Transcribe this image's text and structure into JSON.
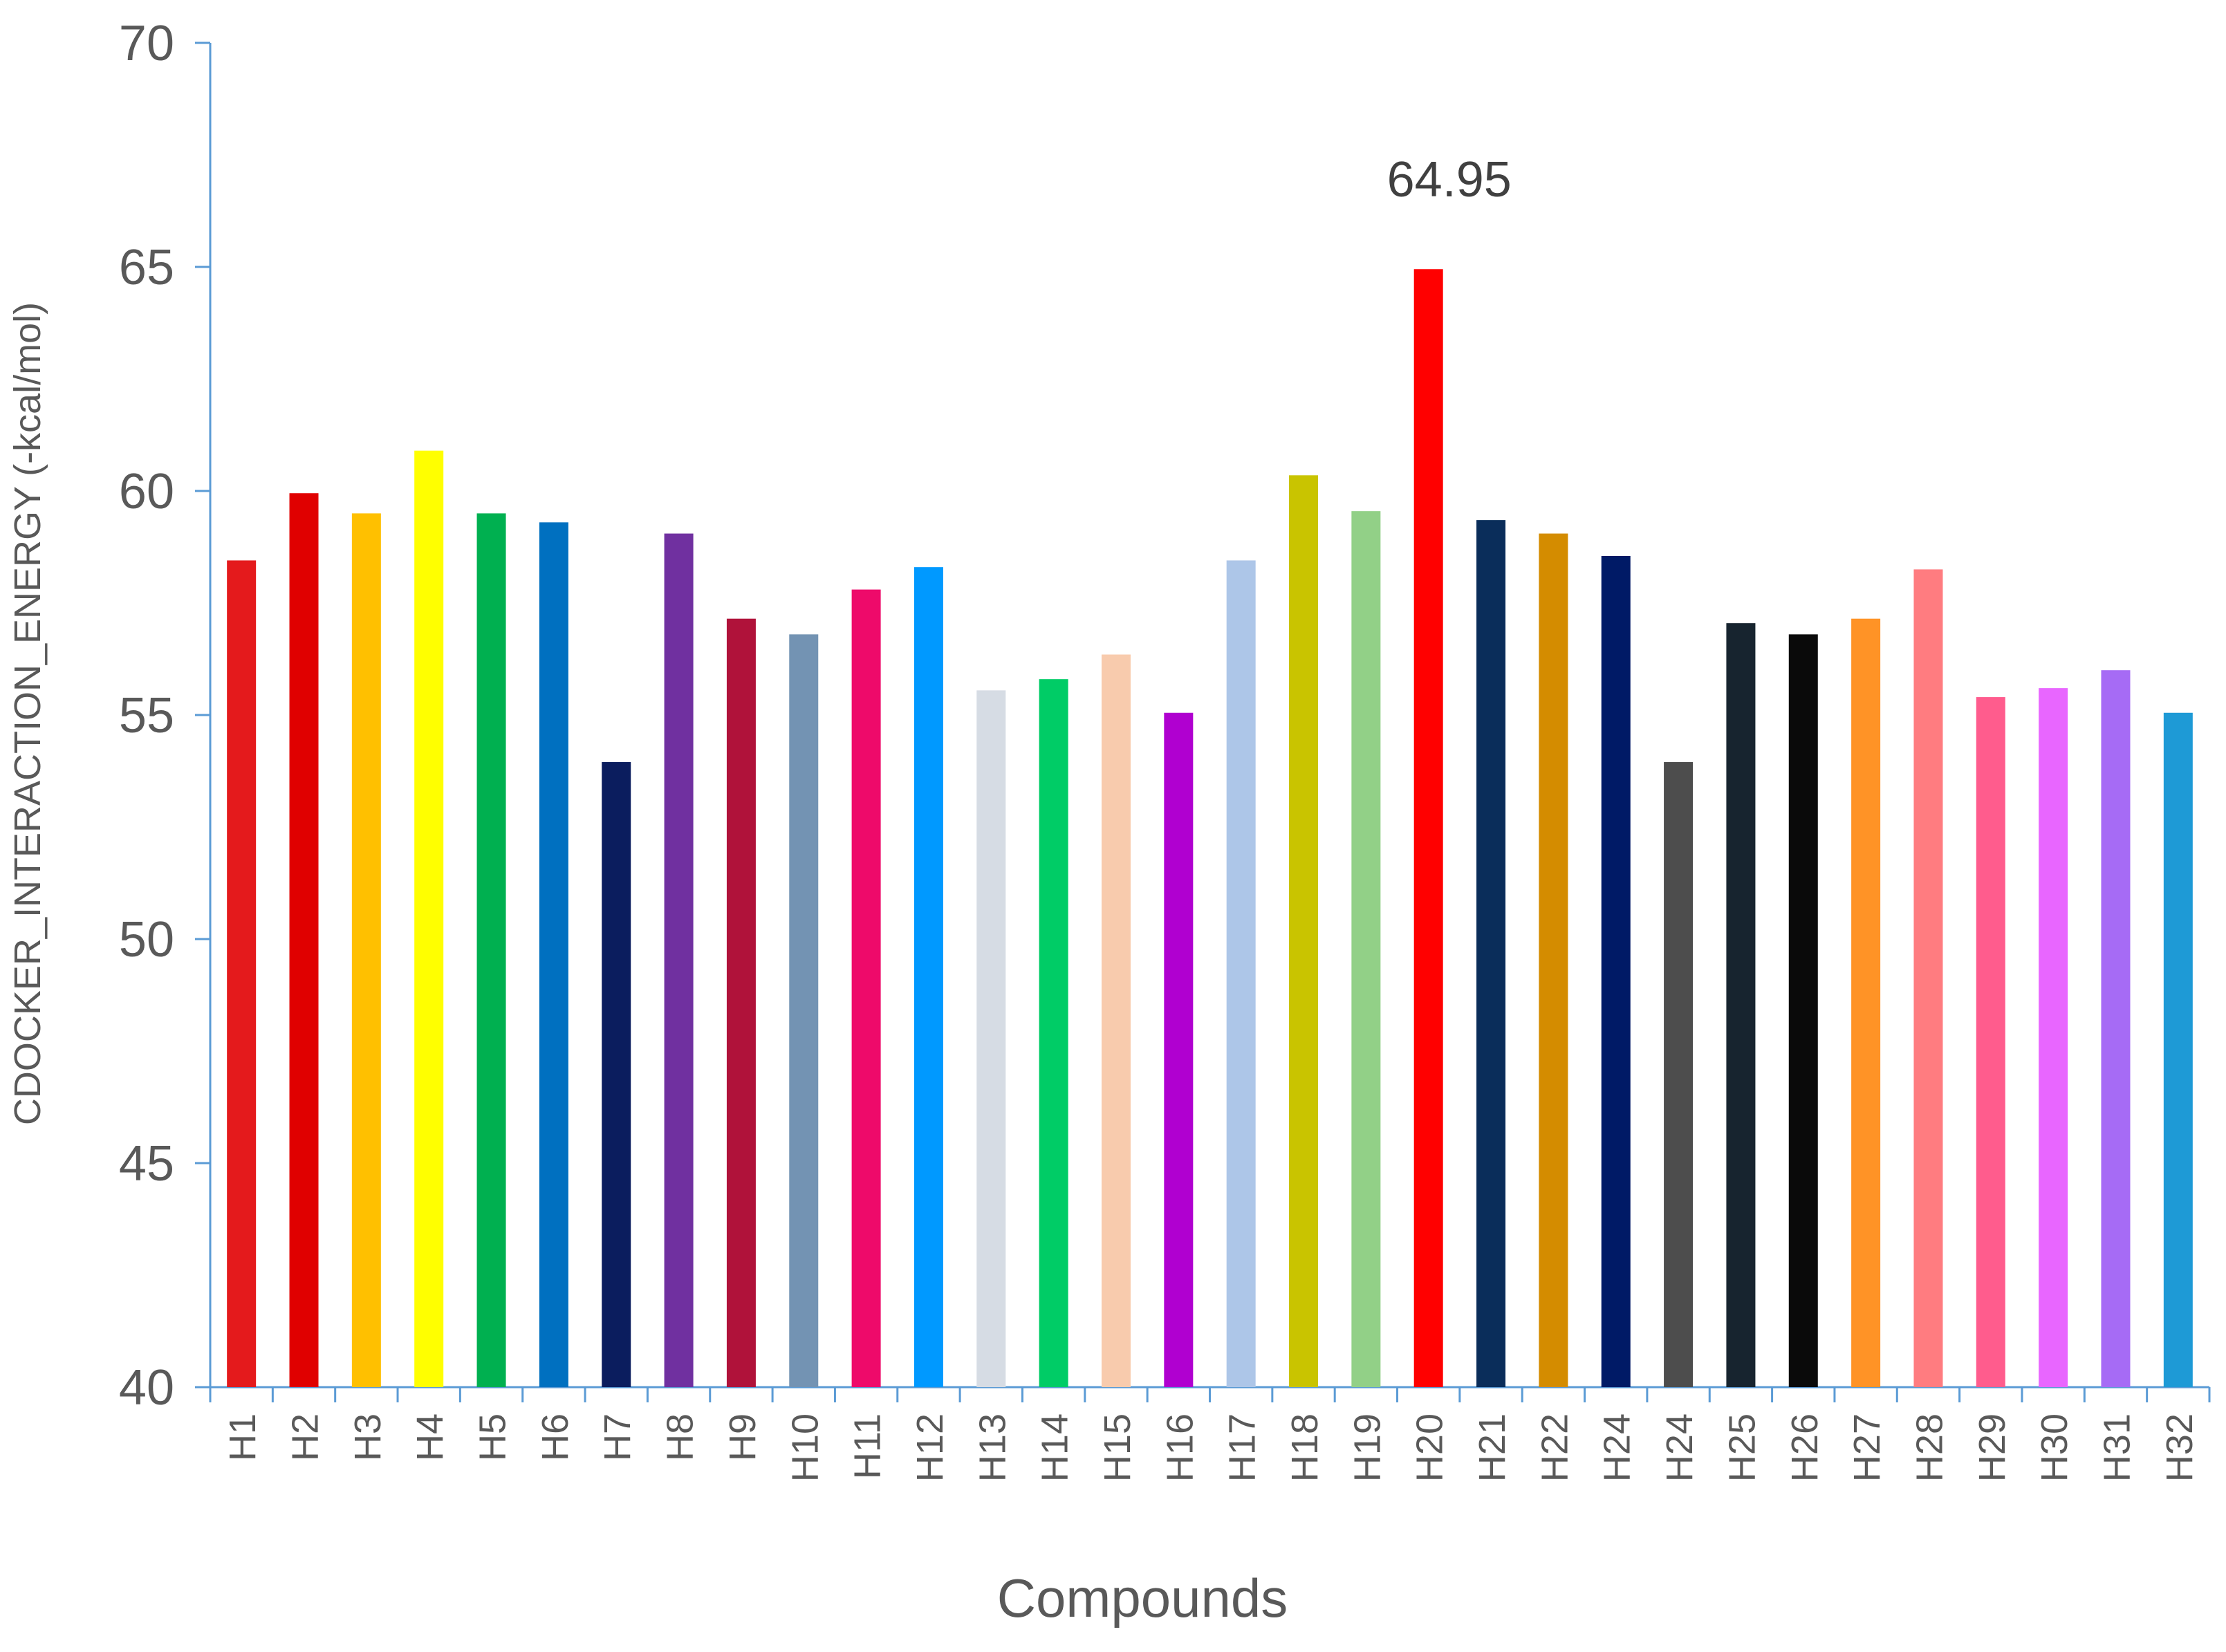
{
  "chart_data": {
    "type": "bar",
    "title": "",
    "xlabel": "Compounds",
    "ylabel": "CDOCKER_INTERACTION_ENERGY (-kcal/mol)",
    "ylim": [
      40,
      70
    ],
    "yticks": [
      40,
      45,
      50,
      55,
      60,
      65,
      70
    ],
    "grid": false,
    "legend": "none",
    "categories": [
      "H1",
      "H2",
      "H3",
      "H4",
      "H5",
      "H6",
      "H7",
      "H8",
      "H9",
      "H10",
      "H11",
      "H12",
      "H13",
      "H14",
      "H15",
      "H16",
      "H17",
      "H18",
      "H19",
      "H20",
      "H21",
      "H22",
      "H24",
      "H24",
      "H25",
      "H26",
      "H27",
      "H28",
      "H29",
      "H30",
      "H31",
      "H32"
    ],
    "values": [
      58.45,
      59.95,
      59.5,
      60.9,
      59.5,
      59.3,
      53.95,
      59.05,
      57.15,
      56.8,
      57.8,
      58.3,
      55.55,
      55.8,
      56.35,
      55.05,
      58.45,
      60.35,
      59.55,
      64.95,
      59.35,
      59.05,
      58.55,
      53.95,
      57.05,
      56.8,
      57.15,
      58.25,
      55.4,
      55.6,
      56.0,
      55.05
    ],
    "colors": [
      "#e41a1c",
      "#e00000",
      "#ffc000",
      "#ffff00",
      "#00b050",
      "#0070c0",
      "#0b1d5e",
      "#7030a0",
      "#b0123a",
      "#7393b3",
      "#ee0a6a",
      "#0099ff",
      "#d6dce4",
      "#00cc66",
      "#f8cbad",
      "#b000d0",
      "#adc6e8",
      "#c9c400",
      "#92d087",
      "#ff0000",
      "#0a2d5a",
      "#d48c00",
      "#001a66",
      "#4d4d4d",
      "#17242f",
      "#0a0a0a",
      "#ff9326",
      "#ff7c80",
      "#ff5c8d",
      "#e866ff",
      "#a66bf5",
      "#1e9ad6"
    ],
    "data_labels": [
      {
        "index": 19,
        "text": "64.95"
      }
    ],
    "axis_color": "#5b9bd5"
  }
}
